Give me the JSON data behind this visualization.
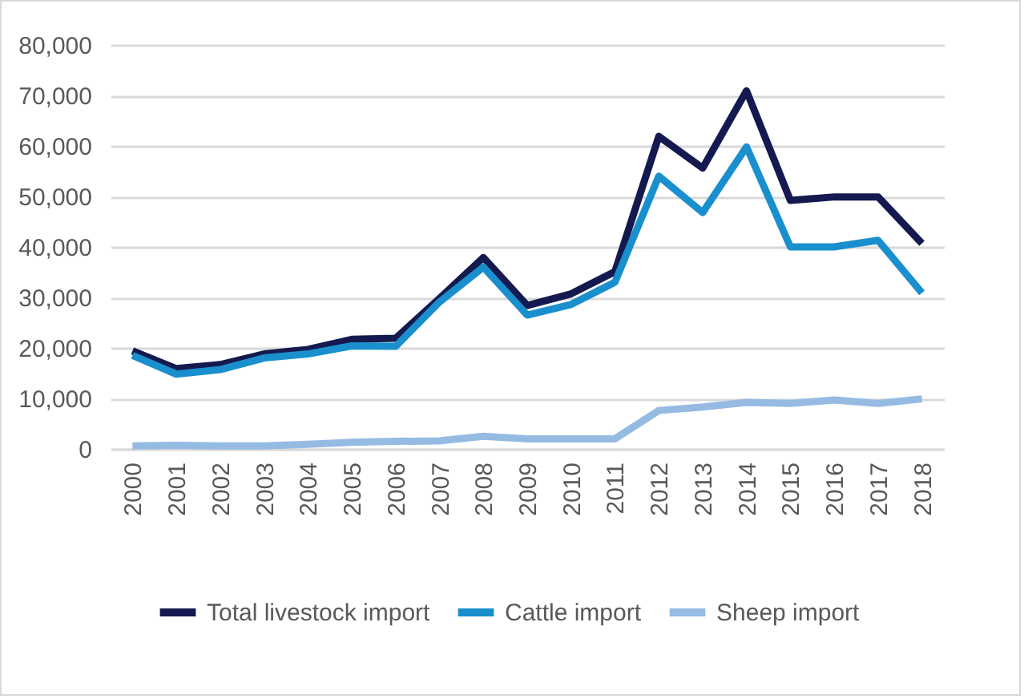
{
  "chart_data": {
    "type": "line",
    "categories": [
      "2000",
      "2001",
      "2002",
      "2003",
      "2004",
      "2005",
      "2006",
      "2007",
      "2008",
      "2009",
      "2010",
      "2011",
      "2012",
      "2013",
      "2014",
      "2015",
      "2016",
      "2017",
      "2018"
    ],
    "series": [
      {
        "name": "Total livestock import",
        "color": "#141a4f",
        "values": [
          19400,
          15900,
          16700,
          18800,
          19700,
          21700,
          21900,
          29800,
          37900,
          28400,
          30700,
          35100,
          61900,
          55600,
          70900,
          49200,
          49900,
          49900,
          40700
        ]
      },
      {
        "name": "Cattle import",
        "color": "#1a8fcd",
        "values": [
          18500,
          14800,
          15700,
          18000,
          18800,
          20400,
          20300,
          29100,
          36000,
          26500,
          28600,
          33000,
          54000,
          46800,
          59800,
          40000,
          40000,
          41300,
          30900
        ]
      },
      {
        "name": "Sheep import",
        "color": "#95bbe3",
        "values": [
          600,
          700,
          600,
          600,
          900,
          1300,
          1500,
          1600,
          2500,
          2000,
          2000,
          2000,
          7600,
          8300,
          9200,
          9000,
          9700,
          9000,
          9900
        ]
      }
    ],
    "ylim": [
      0,
      80000
    ],
    "yticks": [
      0,
      {
        "value": 10000,
        "label": "10,000"
      },
      {
        "value": 20000,
        "label": "20,000"
      },
      {
        "value": 30000,
        "label": "30,000"
      },
      {
        "value": 40000,
        "label": "40,000"
      },
      {
        "value": 50000,
        "label": "50,000"
      },
      {
        "value": 60000,
        "label": "60,000"
      },
      {
        "value": 70000,
        "label": "70,000"
      },
      {
        "value": 80000,
        "label": "80,000"
      }
    ],
    "grid": "y",
    "legend": "bottom",
    "line_style": "solid",
    "marker": "none"
  }
}
